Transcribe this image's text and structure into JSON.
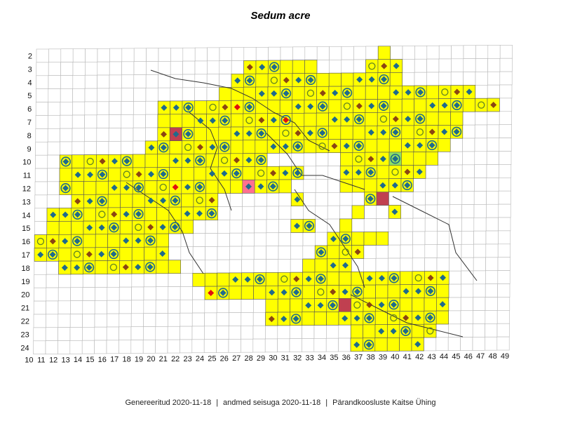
{
  "title": "Sedum acre",
  "footer": {
    "generated": "Genereeritud 2020-11-18",
    "data_state": "andmed seisuga 2020-11-18",
    "org": "Pärandkoosluste Kaitse Ühing"
  },
  "grid": {
    "columns": [
      "10",
      "11",
      "12",
      "13",
      "14",
      "15",
      "16",
      "17",
      "18",
      "19",
      "20",
      "21",
      "22",
      "23",
      "24",
      "25",
      "26",
      "27",
      "28",
      "29",
      "30",
      "31",
      "32",
      "33",
      "34",
      "35",
      "36",
      "37",
      "38",
      "39",
      "40",
      "41",
      "42",
      "43",
      "44",
      "45",
      "46",
      "47",
      "48",
      "49"
    ],
    "rows": [
      "2",
      "3",
      "4",
      "5",
      "6",
      "7",
      "8",
      "9",
      "10",
      "11",
      "12",
      "13",
      "14",
      "15",
      "16",
      "17",
      "18",
      "19",
      "20",
      "21",
      "22",
      "23",
      "24"
    ]
  },
  "colors": {
    "present": "#ffff00",
    "absent_line": "#b8b8b8",
    "border": "#333333",
    "diamond": "#1f6b8c",
    "ring": "#1f6b8c",
    "brown": "#8b4513",
    "red": "#e01010",
    "green": "#90e060",
    "darkred": "#c04050",
    "pink": "#ff7090"
  },
  "legend_symbols": [
    "diamond-marker",
    "ring-marker",
    "brown-diamond-marker",
    "red-diamond-marker"
  ]
}
